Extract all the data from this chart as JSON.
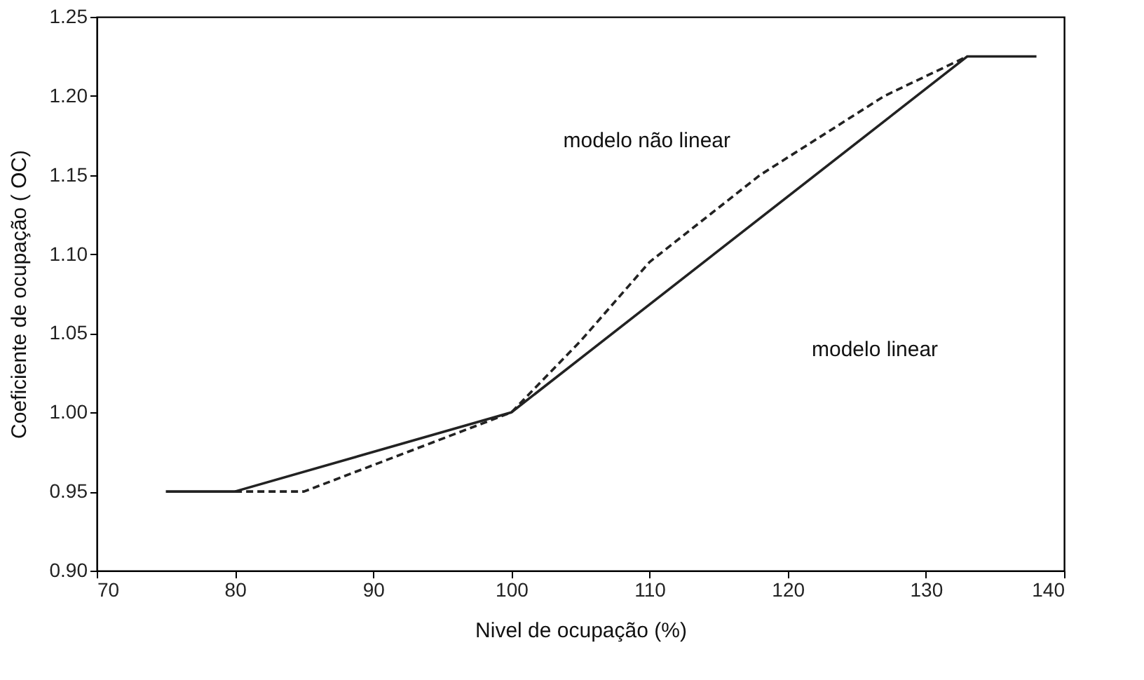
{
  "chart_data": {
    "type": "line",
    "xlabel": "Nivel de ocupação (%)",
    "ylabel": "Coeficiente de ocupação ( OC)",
    "xlim": [
      70,
      140
    ],
    "xticks": [
      70,
      80,
      90,
      100,
      110,
      120,
      130,
      140
    ],
    "ylim": [
      0.9,
      1.25
    ],
    "yticks": [
      {
        "value": 0.9,
        "label": "0.90"
      },
      0.95,
      {
        "value": 1.0,
        "label": "1.00"
      },
      1.05,
      {
        "value": 1.1,
        "label": "1.10"
      },
      1.15,
      {
        "value": 1.2,
        "label": "1.20"
      },
      1.25
    ],
    "grid": false,
    "marker": "none",
    "series": [
      {
        "color": "#222222",
        "line_style": "solid",
        "x": [
          75,
          80,
          100,
          133,
          138
        ],
        "values": [
          0.95,
          0.95,
          1.0,
          1.225,
          1.225
        ]
      },
      {
        "color": "#222222",
        "line_style": "dashed",
        "x": [
          80,
          85,
          100,
          105,
          110,
          118,
          127,
          133
        ],
        "values": [
          0.95,
          0.95,
          1.0,
          1.045,
          1.095,
          1.15,
          1.2,
          1.225
        ]
      }
    ],
    "annotations": [
      "modelo não linear",
      "modelo linear"
    ]
  }
}
